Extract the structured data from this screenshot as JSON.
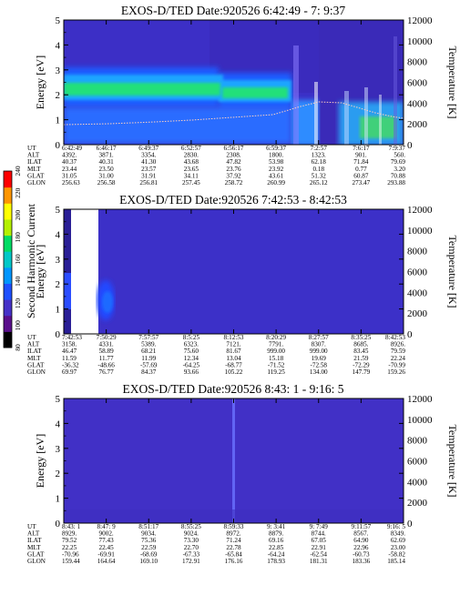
{
  "colorbar": {
    "label": "Second Harmonic Current",
    "ticks": [
      "240",
      "220",
      "200",
      "180",
      "160",
      "140",
      "120",
      "100",
      "80"
    ],
    "stops": [
      "#000000",
      "#5a0f8c",
      "#4632c8",
      "#1e50ff",
      "#0096ff",
      "#00c8c8",
      "#00dc64",
      "#b4f000",
      "#ffff00",
      "#ff9600",
      "#ff0000"
    ]
  },
  "chart_data": [
    {
      "type": "heatmap",
      "title": "EXOS-D/TED   Date:920526   6:42:49 - 7: 9:37",
      "ylabel": "Energy [eV]",
      "y2label": "Temperature [K]",
      "ylim": [
        0,
        5
      ],
      "y2lim": [
        0,
        12000
      ],
      "yticks": [
        "0",
        "1",
        "2",
        "3",
        "4",
        "5"
      ],
      "y2ticks": [
        "0",
        "2000",
        "4000",
        "6000",
        "8000",
        "10000",
        "12000"
      ],
      "row_labels": [
        "UT",
        "ALT",
        "ILAT",
        "MLT",
        "GLAT",
        "GLON"
      ],
      "columns": [
        [
          "6:42:49",
          "4392.",
          "40.37",
          "23.44",
          "31.05",
          "256.63"
        ],
        [
          "6:46:17",
          "3871.",
          "40.31",
          "23.50",
          "31.00",
          "256.58"
        ],
        [
          "6:49:37",
          "3354.",
          "41.30",
          "23.57",
          "31.91",
          "256.81"
        ],
        [
          "6:52:57",
          "2830.",
          "43.68",
          "23.65",
          "34.11",
          "257.45"
        ],
        [
          "6:56:17",
          "2308.",
          "47.82",
          "23.76",
          "37.92",
          "258.72"
        ],
        [
          "6:59:37",
          "1800.",
          "53.98",
          "23.92",
          "43.61",
          "260.99"
        ],
        [
          "7:2:57",
          "1323.",
          "62.18",
          "0.18",
          "51.32",
          "265.12"
        ],
        [
          "7:6:17",
          "901.",
          "71.84",
          "0.77",
          "60.87",
          "273.47"
        ],
        [
          "7:9:37",
          "560.",
          "79.69",
          "3.20",
          "70.88",
          "293.88"
        ]
      ]
    },
    {
      "type": "heatmap",
      "title": "EXOS-D/TED   Date:920526   7:42:53 - 8:42:53",
      "ylabel": "Energy [eV]",
      "y2label": "Temperature [K]",
      "ylim": [
        0,
        5
      ],
      "y2lim": [
        0,
        12000
      ],
      "yticks": [
        "0",
        "1",
        "2",
        "3",
        "4",
        "5"
      ],
      "y2ticks": [
        "0",
        "2000",
        "4000",
        "6000",
        "8000",
        "10000",
        "12000"
      ],
      "row_labels": [
        "UT",
        "ALT",
        "ILAT",
        "MLT",
        "GLAT",
        "GLON"
      ],
      "columns": [
        [
          "7:42:53",
          "3158.",
          "46.47",
          "11.59",
          "-36.32",
          "69.97"
        ],
        [
          "7:50:29",
          "4331.",
          "58.89",
          "11.77",
          "-48.66",
          "76.77"
        ],
        [
          "7:57:57",
          "5389.",
          "68.21",
          "11.99",
          "-57.69",
          "84.37"
        ],
        [
          "8:5:25",
          "6323.",
          "75.60",
          "12.34",
          "-64.25",
          "93.66"
        ],
        [
          "8:12:53",
          "7121.",
          "81.67",
          "13.04",
          "-68.77",
          "105.22"
        ],
        [
          "8:20:29",
          "7791.",
          "999.00",
          "15.18",
          "-71.52",
          "119.25"
        ],
        [
          "8:27:57",
          "8307.",
          "999.00",
          "19.69",
          "-72.58",
          "134.00"
        ],
        [
          "8:35:25",
          "8685.",
          "83.45",
          "21.59",
          "-72.29",
          "147.79"
        ],
        [
          "8:42:53",
          "8926.",
          "79.59",
          "22.24",
          "-70.99",
          "159.26"
        ]
      ]
    },
    {
      "type": "heatmap",
      "title": "EXOS-D/TED   Date:920526   8:43: 1 - 9:16: 5",
      "ylabel": "Energy [eV]",
      "y2label": "Temperature [K]",
      "ylim": [
        0,
        5
      ],
      "y2lim": [
        0,
        12000
      ],
      "yticks": [
        "0",
        "1",
        "2",
        "3",
        "4",
        "5"
      ],
      "y2ticks": [
        "0",
        "2000",
        "4000",
        "6000",
        "8000",
        "10000",
        "12000"
      ],
      "row_labels": [
        "UT",
        "ALT",
        "ILAT",
        "MLT",
        "GLAT",
        "GLON"
      ],
      "columns": [
        [
          "8:43: 1",
          "8929.",
          "79.52",
          "22.25",
          "-70.96",
          "159.44"
        ],
        [
          "8:47: 9",
          "9002.",
          "77.43",
          "22.45",
          "-69.91",
          "164.64"
        ],
        [
          "8:51:17",
          "9034.",
          "75.36",
          "22.59",
          "-68.69",
          "169.10"
        ],
        [
          "8:55:25",
          "9024.",
          "73.30",
          "22.70",
          "-67.33",
          "172.91"
        ],
        [
          "8:59:33",
          "8972.",
          "71.24",
          "22.78",
          "-65.84",
          "176.16"
        ],
        [
          "9: 3:41",
          "8879.",
          "69.16",
          "22.85",
          "-64.24",
          "178.93"
        ],
        [
          "9: 7:49",
          "8744.",
          "67.05",
          "22.91",
          "-62.54",
          "181.31"
        ],
        [
          "9:11:57",
          "8567.",
          "64.90",
          "22.96",
          "-60.73",
          "183.36"
        ],
        [
          "9:16: 5",
          "8349.",
          "62.69",
          "23.00",
          "-58.82",
          "185.14"
        ]
      ]
    }
  ]
}
